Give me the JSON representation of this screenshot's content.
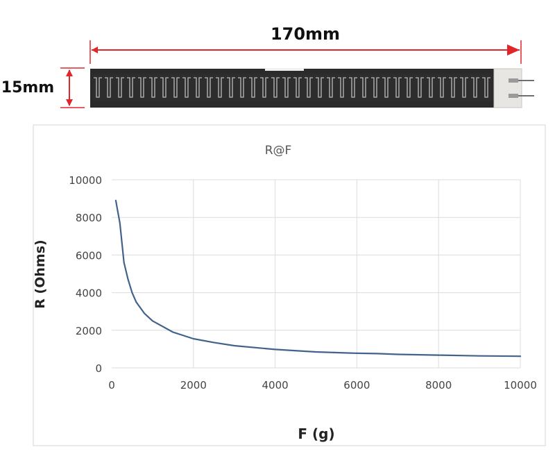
{
  "sensor": {
    "length_label": "170mm",
    "width_label": "15mm",
    "dimension_color": "#e0262b"
  },
  "chart_data": {
    "type": "line",
    "title": "R@F",
    "xlabel": "F (g)",
    "ylabel": "R (Ohms)",
    "xlim": [
      0,
      10000
    ],
    "ylim": [
      0,
      10000
    ],
    "x_ticks": [
      "0",
      "2000",
      "4000",
      "6000",
      "8000",
      "10000"
    ],
    "y_ticks": [
      "0",
      "2000",
      "4000",
      "6000",
      "8000",
      "10000"
    ],
    "grid": true,
    "series": [
      {
        "color": "#41628a",
        "x": [
          100,
          200,
          300,
          400,
          500,
          600,
          800,
          1000,
          1500,
          2000,
          2500,
          3000,
          4000,
          5000,
          6000,
          6500,
          7000,
          8000,
          9000,
          10000
        ],
        "y": [
          8900,
          7700,
          5600,
          4700,
          4000,
          3500,
          2900,
          2500,
          1900,
          1550,
          1350,
          1180,
          980,
          850,
          780,
          760,
          720,
          680,
          640,
          620
        ]
      }
    ]
  }
}
